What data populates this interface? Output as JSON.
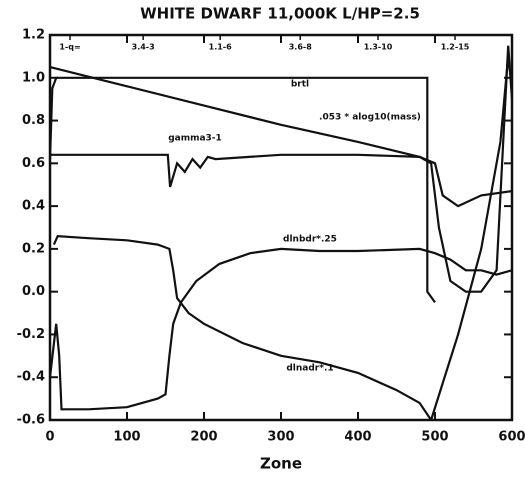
{
  "chart_data": {
    "type": "line",
    "title": "WHITE DWARF 11,000K L/HP=2.5",
    "x_label": "Zone",
    "xlim": [
      0,
      600
    ],
    "xticks": [
      0,
      100,
      200,
      300,
      400,
      500,
      600
    ],
    "ylim": [
      -0.6,
      1.2
    ],
    "yticks": [
      -0.6,
      -0.4,
      -0.2,
      {
        "value": 0,
        "label": "0.0"
      },
      0.2,
      0.4,
      0.6,
      0.8,
      {
        "value": 1,
        "label": "1.0"
      },
      1.2
    ],
    "top_ticks": [
      {
        "value": 26,
        "label": "1-q="
      },
      {
        "value": 121,
        "label": "3.4-3"
      },
      {
        "value": 221,
        "label": "1.1-6"
      },
      {
        "value": 325,
        "label": "3.6-8"
      },
      {
        "value": 426,
        "label": "1.3-10"
      },
      {
        "value": 526,
        "label": "1.2-15"
      }
    ],
    "color": "#111111",
    "series": [
      {
        "name": "brtl",
        "x": [
          0,
          3,
          8,
          12,
          490,
          490,
          500
        ],
        "values": [
          0.62,
          0.95,
          1.0,
          1.0,
          1.0,
          0.0,
          -0.05
        ]
      },
      {
        "name": ".053 * alog10(mass)",
        "x": [
          0,
          100,
          200,
          300,
          400,
          480,
          495,
          505,
          520,
          540,
          560,
          580,
          590,
          595,
          600
        ],
        "values": [
          1.05,
          0.96,
          0.87,
          0.78,
          0.7,
          0.63,
          0.6,
          0.3,
          0.05,
          0.0,
          0.0,
          0.1,
          0.8,
          1.15,
          0.9
        ]
      },
      {
        "name": "gamma3-1",
        "x": [
          0,
          150,
          153,
          156,
          165,
          175,
          185,
          195,
          205,
          215,
          300,
          400,
          480,
          500,
          510,
          530,
          560,
          600
        ],
        "values": [
          0.64,
          0.64,
          0.64,
          0.49,
          0.6,
          0.56,
          0.62,
          0.58,
          0.63,
          0.62,
          0.64,
          0.64,
          0.63,
          0.6,
          0.45,
          0.4,
          0.45,
          0.47
        ]
      },
      {
        "name": "dlnbdr*.25",
        "x": [
          0,
          8,
          12,
          15,
          50,
          100,
          140,
          150,
          155,
          160,
          170,
          190,
          220,
          260,
          300,
          350,
          400,
          480,
          500,
          520,
          540,
          560,
          580,
          600
        ],
        "values": [
          -0.4,
          -0.15,
          -0.3,
          -0.55,
          -0.55,
          -0.54,
          -0.5,
          -0.48,
          -0.3,
          -0.15,
          -0.05,
          0.05,
          0.13,
          0.18,
          0.2,
          0.19,
          0.19,
          0.2,
          0.18,
          0.15,
          0.1,
          0.1,
          0.08,
          0.1
        ]
      },
      {
        "name": "dlnadr*.1",
        "x": [
          5,
          10,
          50,
          100,
          140,
          155,
          160,
          165,
          180,
          200,
          250,
          300,
          350,
          400,
          450,
          480,
          495
        ],
        "values": [
          0.22,
          0.26,
          0.25,
          0.24,
          0.22,
          0.2,
          0.1,
          -0.03,
          -0.1,
          -0.15,
          -0.24,
          -0.3,
          -0.33,
          -0.38,
          -0.46,
          -0.52,
          -0.6
        ]
      },
      {
        "x": [
          495,
          530,
          560,
          585,
          595,
          600
        ],
        "values": [
          -0.6,
          -0.2,
          0.2,
          0.7,
          1.1,
          0.95
        ]
      }
    ]
  }
}
